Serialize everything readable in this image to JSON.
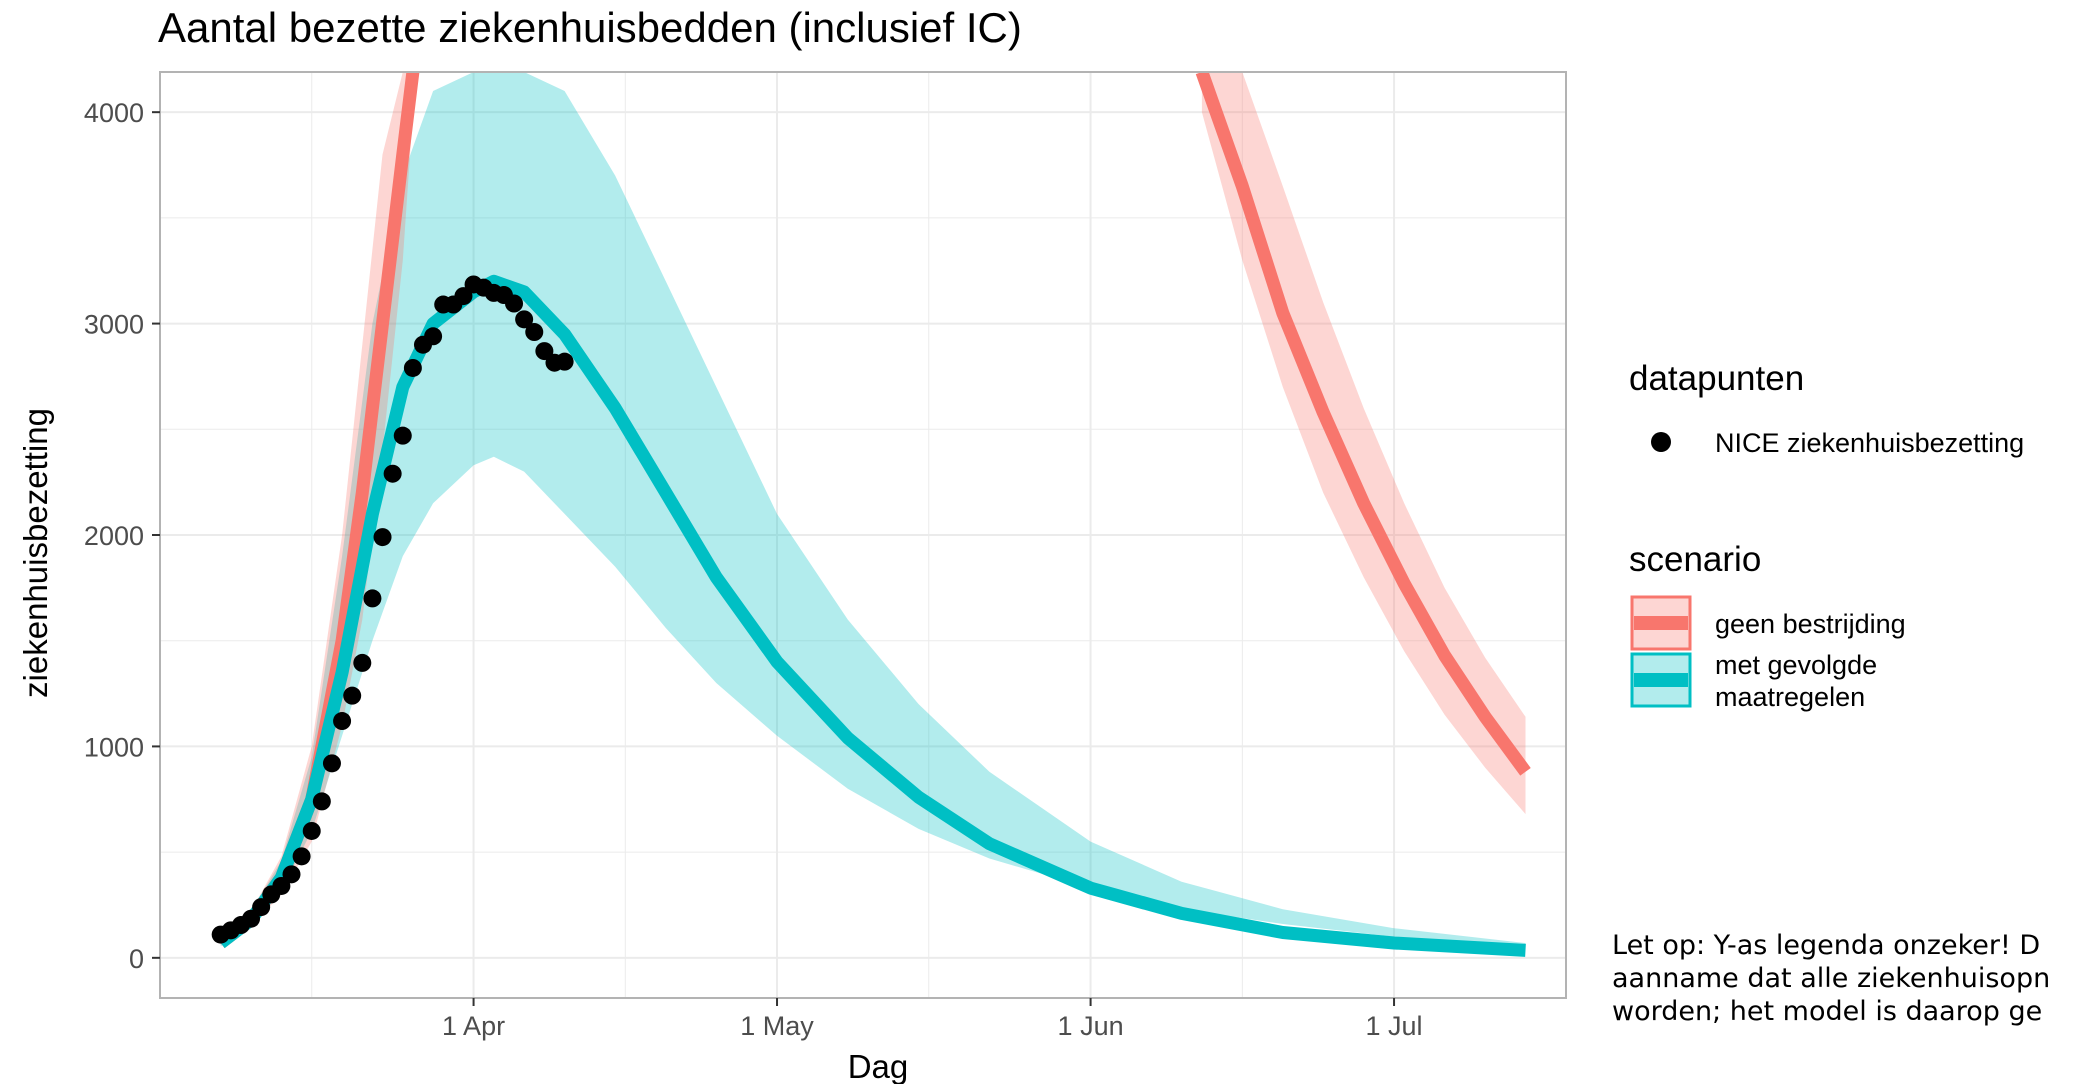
{
  "chart_data": {
    "type": "line",
    "title": "Aantal bezette ziekenhuisbedden (inclusief IC)",
    "xlabel": "Dag",
    "ylabel": "ziekenhuisbezetting",
    "x_ticks": [
      {
        "label": "1 Apr",
        "date": "2020-04-01"
      },
      {
        "label": "1 May",
        "date": "2020-05-01"
      },
      {
        "label": "1 Jun",
        "date": "2020-06-01"
      },
      {
        "label": "1 Jul",
        "date": "2020-07-01"
      }
    ],
    "x_minor_dates": [
      "2020-03-16",
      "2020-04-16",
      "2020-05-16",
      "2020-06-16"
    ],
    "xlim": [
      "2020-03-01",
      "2020-07-18"
    ],
    "y_ticks": [
      0,
      1000,
      2000,
      3000,
      4000
    ],
    "ylim": [
      -190,
      4190
    ],
    "grid": true,
    "legend_position": "right",
    "colors": {
      "geen_bestrijding": "#F8766D",
      "met_gevolgde_maatregelen": "#00BFC4",
      "datapunten": "#000000",
      "grid": "#ebebeb",
      "panel_border": "#b3b3b3"
    },
    "series": [
      {
        "name": "geen bestrijding",
        "legend_group": "scenario",
        "color": "#F8766D",
        "segments": [
          {
            "x": [
              "2020-03-07",
              "2020-03-10",
              "2020-03-13",
              "2020-03-16",
              "2020-03-19",
              "2020-03-21",
              "2020-03-23",
              "2020-03-25",
              "2020-03-26"
            ],
            "y": [
              70,
              180,
              380,
              750,
              1500,
              2200,
              3000,
              3800,
              4190
            ],
            "lower": [
              60,
              150,
              300,
              550,
              1100,
              1600,
              2400,
              3300,
              4000
            ],
            "upper": [
              85,
              220,
              480,
              1000,
              2000,
              2900,
              3800,
              4190,
              4190
            ]
          },
          {
            "x": [
              "2020-06-12",
              "2020-06-16",
              "2020-06-20",
              "2020-06-24",
              "2020-06-28",
              "2020-07-02",
              "2020-07-06",
              "2020-07-10",
              "2020-07-14"
            ],
            "y": [
              4190,
              3650,
              3050,
              2580,
              2150,
              1770,
              1430,
              1140,
              880
            ],
            "lower": [
              4000,
              3300,
              2700,
              2200,
              1800,
              1450,
              1150,
              900,
              680
            ],
            "upper": [
              4190,
              4190,
              3650,
              3100,
              2600,
              2150,
              1750,
              1420,
              1140
            ]
          }
        ]
      },
      {
        "name": "met gevolgde\n maatregelen",
        "legend_group": "scenario",
        "color": "#00BFC4",
        "x": [
          "2020-03-07",
          "2020-03-10",
          "2020-03-13",
          "2020-03-16",
          "2020-03-19",
          "2020-03-22",
          "2020-03-25",
          "2020-03-28",
          "2020-04-01",
          "2020-04-03",
          "2020-04-06",
          "2020-04-10",
          "2020-04-15",
          "2020-04-20",
          "2020-04-25",
          "2020-05-01",
          "2020-05-08",
          "2020-05-15",
          "2020-05-22",
          "2020-06-01",
          "2020-06-10",
          "2020-06-20",
          "2020-07-01",
          "2020-07-14"
        ],
        "y": [
          70,
          180,
          380,
          750,
          1350,
          2100,
          2700,
          3000,
          3150,
          3200,
          3150,
          2950,
          2600,
          2200,
          1800,
          1400,
          1040,
          760,
          540,
          330,
          210,
          120,
          70,
          35
        ],
        "lower": [
          55,
          150,
          320,
          600,
          1050,
          1500,
          1900,
          2150,
          2330,
          2370,
          2300,
          2100,
          1850,
          1560,
          1300,
          1050,
          800,
          610,
          470,
          330,
          230,
          160,
          100,
          60
        ],
        "upper": [
          85,
          220,
          460,
          950,
          1900,
          3000,
          3700,
          4100,
          4190,
          4190,
          4190,
          4100,
          3700,
          3200,
          2700,
          2100,
          1600,
          1200,
          880,
          550,
          360,
          230,
          140,
          70
        ]
      }
    ],
    "points": {
      "name": "NICE ziekenhuisbezetting",
      "legend_group": "datapunten",
      "color": "#000000",
      "x": [
        "2020-03-07",
        "2020-03-08",
        "2020-03-09",
        "2020-03-10",
        "2020-03-11",
        "2020-03-12",
        "2020-03-13",
        "2020-03-14",
        "2020-03-15",
        "2020-03-16",
        "2020-03-17",
        "2020-03-18",
        "2020-03-19",
        "2020-03-20",
        "2020-03-21",
        "2020-03-22",
        "2020-03-23",
        "2020-03-24",
        "2020-03-25",
        "2020-03-26",
        "2020-03-27",
        "2020-03-28",
        "2020-03-29",
        "2020-03-30",
        "2020-03-31",
        "2020-04-01",
        "2020-04-02",
        "2020-04-03",
        "2020-04-04",
        "2020-04-05",
        "2020-04-06",
        "2020-04-07",
        "2020-04-08",
        "2020-04-09",
        "2020-04-10"
      ],
      "y": [
        110,
        130,
        155,
        185,
        240,
        300,
        340,
        395,
        480,
        600,
        740,
        920,
        1120,
        1240,
        1395,
        1700,
        1990,
        2290,
        2470,
        2790,
        2900,
        2940,
        3090,
        3090,
        3130,
        3185,
        3170,
        3145,
        3135,
        3095,
        3020,
        2960,
        2870,
        2815,
        2820
      ]
    },
    "legend": {
      "datapunten": {
        "title": "datapunten",
        "items": [
          "NICE ziekenhuisbezetting"
        ]
      },
      "scenario": {
        "title": "scenario",
        "items": [
          "geen bestrijding",
          "met gevolgde\n maatregelen"
        ]
      }
    },
    "annotation": [
      "Let op: Y-as legenda onzeker! D",
      "aanname dat alle ziekenhuisopn",
      "worden; het model is daarop ge"
    ]
  }
}
